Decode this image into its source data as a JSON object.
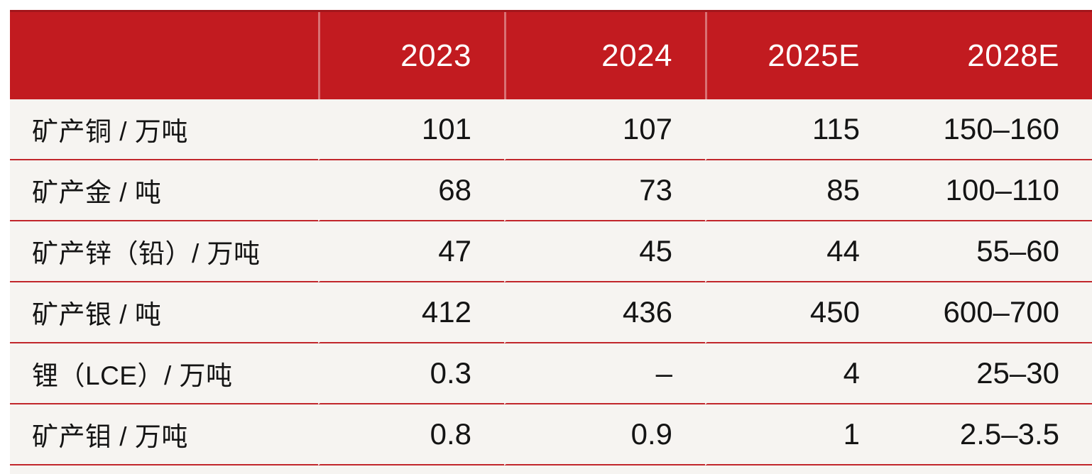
{
  "chart_data": {
    "type": "table",
    "title": "",
    "columns": [
      "",
      "2023",
      "2024",
      "2025E",
      "2028E"
    ],
    "rows": [
      {
        "label": "矿产铜 / 万吨",
        "values": [
          "101",
          "107",
          "115",
          "150–160"
        ]
      },
      {
        "label": "矿产金 / 吨",
        "values": [
          "68",
          "73",
          "85",
          "100–110"
        ]
      },
      {
        "label": "矿产锌（铅）/ 万吨",
        "values": [
          "47",
          "45",
          "44",
          "55–60"
        ]
      },
      {
        "label": "矿产银 / 吨",
        "values": [
          "412",
          "436",
          "450",
          "600–700"
        ]
      },
      {
        "label": "锂（LCE）/ 万吨",
        "values": [
          "0.3",
          "–",
          "4",
          "25–30"
        ]
      },
      {
        "label": "矿产钼 / 万吨",
        "values": [
          "0.8",
          "0.9",
          "1",
          "2.5–3.5"
        ]
      }
    ],
    "layout": {
      "header_alignment": "right",
      "value_alignment": "right",
      "label_alignment": "left"
    },
    "colors": {
      "header_bg": "#c21b20",
      "header_top_edge": "#a3161b",
      "header_text": "#ffffff",
      "row_bg": "#f6f4f1",
      "separator_line": "#c1262b",
      "body_text": "#141414",
      "page_bg": "#ffffff"
    }
  }
}
